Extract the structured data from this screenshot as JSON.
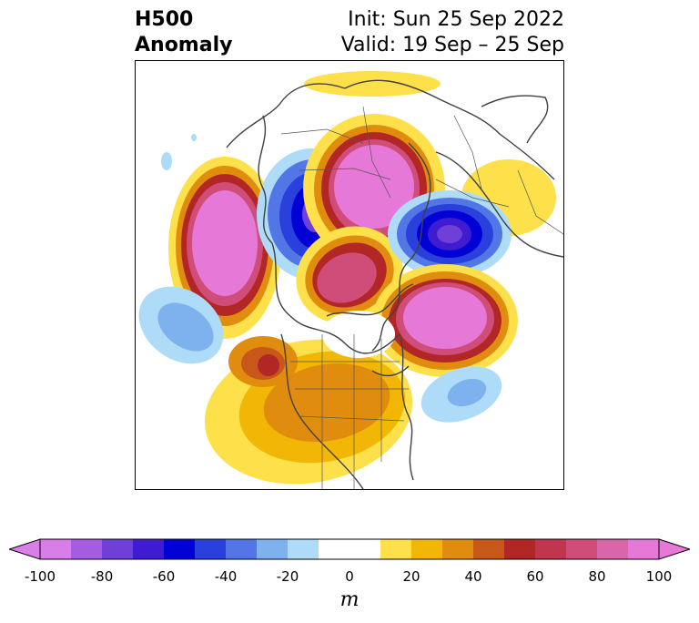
{
  "title": {
    "left_line1": "H500",
    "left_line2": "Anomaly",
    "right_line1": "Init: Sun 25 Sep 2022",
    "right_line2": "Valid: 19 Sep – 25 Sep"
  },
  "colorbar": {
    "unit": "m",
    "ticks": [
      "-100",
      "-80",
      "-60",
      "-40",
      "-20",
      "0",
      "20",
      "40",
      "60",
      "80",
      "100"
    ],
    "tick_values": [
      -100,
      -80,
      -60,
      -40,
      -20,
      0,
      20,
      40,
      60,
      80,
      100
    ],
    "range": [
      -100,
      100
    ],
    "extend": "both",
    "colors": [
      "#d97de8",
      "#a65ce0",
      "#6e3fd9",
      "#3f1ccf",
      "#0000d6",
      "#2a40dc",
      "#5276e6",
      "#7eb2ef",
      "#aedcf8",
      "#ffffff",
      "#ffffff",
      "#fde04a",
      "#f2b706",
      "#e08c0e",
      "#c8571a",
      "#b22626",
      "#c2354f",
      "#cf4d78",
      "#d966a8",
      "#e678d8"
    ],
    "extend_low_color": "#d97de8",
    "extend_high_color": "#e678d8"
  },
  "map": {
    "projection": "north-polar-stereographic",
    "region": "Northern Hemisphere / North America"
  }
}
